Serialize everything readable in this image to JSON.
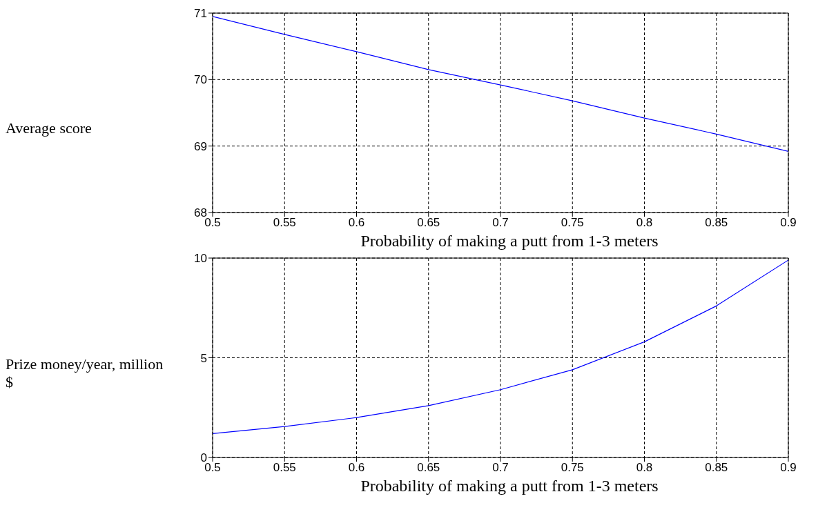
{
  "chart_data": [
    {
      "type": "line",
      "ylabel": "Average score",
      "xlabel": "Probability of making a putt from 1-3 meters",
      "x": [
        0.5,
        0.55,
        0.6,
        0.65,
        0.7,
        0.75,
        0.8,
        0.85,
        0.9
      ],
      "series": [
        {
          "color": "#0000ff",
          "values": [
            70.95,
            70.68,
            70.42,
            70.15,
            69.92,
            69.68,
            69.42,
            69.18,
            68.92
          ]
        }
      ],
      "xlim": [
        0.5,
        0.9
      ],
      "xticks": [
        0.5,
        0.55,
        0.6,
        0.65,
        0.7,
        0.75,
        0.8,
        0.85,
        0.9
      ],
      "ylim": [
        68,
        71
      ],
      "yticks": [
        68,
        69,
        70,
        71
      ],
      "grid": true,
      "line_style": "solid"
    },
    {
      "type": "line",
      "ylabel": "Prize money/year, million $",
      "xlabel": "Probability of making a putt from 1-3 meters",
      "x": [
        0.5,
        0.55,
        0.6,
        0.65,
        0.7,
        0.75,
        0.8,
        0.85,
        0.9
      ],
      "series": [
        {
          "color": "#0000ff",
          "values": [
            1.2,
            1.55,
            2.0,
            2.6,
            3.4,
            4.4,
            5.8,
            7.6,
            9.9
          ]
        }
      ],
      "xlim": [
        0.5,
        0.9
      ],
      "xticks": [
        0.5,
        0.55,
        0.6,
        0.65,
        0.7,
        0.75,
        0.8,
        0.85,
        0.9
      ],
      "ylim": [
        0,
        10
      ],
      "yticks": [
        0,
        5,
        10
      ],
      "grid": true,
      "line_style": "solid"
    }
  ]
}
